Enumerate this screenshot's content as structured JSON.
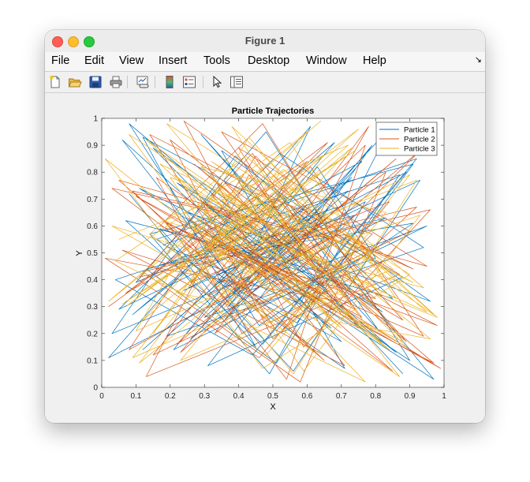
{
  "window": {
    "title": "Figure 1"
  },
  "menu": {
    "items": [
      "File",
      "Edit",
      "View",
      "Insert",
      "Tools",
      "Desktop",
      "Window",
      "Help"
    ],
    "dock_glyph": "↘"
  },
  "toolbar": {
    "icons": [
      "new-figure-icon",
      "open-file-icon",
      "save-icon",
      "print-icon",
      "link-plot-icon",
      "colorbar-icon",
      "legend-icon",
      "pointer-icon",
      "property-inspector-icon"
    ]
  },
  "chart_data": {
    "type": "line",
    "title": "Particle Trajectories",
    "xlabel": "X",
    "ylabel": "Y",
    "xlim": [
      0,
      1
    ],
    "ylim": [
      0,
      1
    ],
    "xticks": [
      "0",
      "0.1",
      "0.2",
      "0.3",
      "0.4",
      "0.5",
      "0.6",
      "0.7",
      "0.8",
      "0.9",
      "1"
    ],
    "yticks": [
      "0",
      "0.1",
      "0.2",
      "0.3",
      "0.4",
      "0.5",
      "0.6",
      "0.7",
      "0.8",
      "0.9",
      "1"
    ],
    "grid": false,
    "legend": "top-right",
    "series": [
      {
        "name": "Particle 1",
        "color": "#0072bd",
        "x": [
          0.08,
          0.45,
          0.12,
          0.88,
          0.31,
          0.66,
          0.05,
          0.52,
          0.94,
          0.19,
          0.73,
          0.38,
          0.61,
          0.02,
          0.83,
          0.27,
          0.57,
          0.91,
          0.14,
          0.49,
          0.77,
          0.33,
          0.68,
          0.09,
          0.42,
          0.86,
          0.22,
          0.59,
          0.96,
          0.35,
          0.71,
          0.16,
          0.53,
          0.81,
          0.29,
          0.64,
          0.07,
          0.47,
          0.89,
          0.24,
          0.62,
          0.97,
          0.11,
          0.55,
          0.79,
          0.36,
          0.69,
          0.04,
          0.44,
          0.92,
          0.18,
          0.58,
          0.84,
          0.26,
          0.74,
          0.13,
          0.51,
          0.87,
          0.32,
          0.67,
          0.06,
          0.41,
          0.95,
          0.21,
          0.63,
          0.8,
          0.3,
          0.72,
          0.1,
          0.48,
          0.9,
          0.25,
          0.6,
          0.03,
          0.39,
          0.85,
          0.17,
          0.56,
          0.93,
          0.34,
          0.7,
          0.15,
          0.54,
          0.82,
          0.28,
          0.65,
          0.08,
          0.46,
          0.91,
          0.2,
          0.76,
          0.37,
          0.6,
          0.12,
          0.5,
          0.88
        ],
        "y": [
          0.72,
          0.15,
          0.93,
          0.41,
          0.08,
          0.66,
          0.29,
          0.87,
          0.52,
          0.19,
          0.78,
          0.34,
          0.97,
          0.11,
          0.63,
          0.45,
          0.24,
          0.83,
          0.57,
          0.05,
          0.69,
          0.38,
          0.91,
          0.27,
          0.61,
          0.13,
          0.76,
          0.49,
          0.32,
          0.88,
          0.07,
          0.55,
          0.71,
          0.21,
          0.94,
          0.43,
          0.62,
          0.16,
          0.8,
          0.36,
          0.58,
          0.03,
          0.74,
          0.47,
          0.9,
          0.25,
          0.67,
          0.4,
          0.12,
          0.85,
          0.53,
          0.31,
          0.96,
          0.18,
          0.64,
          0.44,
          0.09,
          0.79,
          0.56,
          0.22,
          0.92,
          0.35,
          0.6,
          0.14,
          0.82,
          0.48,
          0.26,
          0.73,
          0.39,
          0.95,
          0.1,
          0.65,
          0.5,
          0.2,
          0.86,
          0.33,
          0.59,
          0.06,
          0.77,
          0.42,
          0.17,
          0.89,
          0.54,
          0.28,
          0.7,
          0.37,
          0.98,
          0.23,
          0.61,
          0.46,
          0.84,
          0.3,
          0.68,
          0.14,
          0.57,
          0.05
        ]
      },
      {
        "name": "Particle 2",
        "color": "#d95319",
        "x": [
          0.02,
          0.6,
          0.15,
          0.9,
          0.35,
          0.75,
          0.1,
          0.55,
          0.85,
          0.25,
          0.7,
          0.4,
          0.95,
          0.05,
          0.65,
          0.3,
          0.8,
          0.2,
          0.5,
          0.92,
          0.12,
          0.58,
          0.83,
          0.38,
          0.72,
          0.08,
          0.45,
          0.88,
          0.28,
          0.62,
          0.97,
          0.18,
          0.52,
          0.78,
          0.33,
          0.68,
          0.03,
          0.48,
          0.93,
          0.23,
          0.57,
          0.87,
          0.13,
          0.43,
          0.76,
          0.37,
          0.66,
          0.07,
          0.53,
          0.89,
          0.27,
          0.63,
          0.98,
          0.17,
          0.47,
          0.81,
          0.32,
          0.71,
          0.06,
          0.42,
          0.86,
          0.22,
          0.56,
          0.91,
          0.14,
          0.51,
          0.79,
          0.36,
          0.69,
          0.01,
          0.46,
          0.84,
          0.26,
          0.61,
          0.94,
          0.19,
          0.54,
          0.77,
          0.31,
          0.67,
          0.09,
          0.49,
          0.82,
          0.24,
          0.59,
          0.96,
          0.11,
          0.44,
          0.74,
          0.34,
          0.99,
          0.29,
          0.64,
          0.16,
          0.41,
          0.73
        ],
        "y": [
          0.3,
          0.84,
          0.12,
          0.58,
          0.95,
          0.22,
          0.71,
          0.4,
          0.06,
          0.63,
          0.27,
          0.89,
          0.45,
          0.77,
          0.1,
          0.52,
          0.33,
          0.92,
          0.18,
          0.67,
          0.43,
          0.02,
          0.8,
          0.36,
          0.59,
          0.14,
          0.86,
          0.25,
          0.7,
          0.47,
          0.09,
          0.62,
          0.38,
          0.97,
          0.2,
          0.55,
          0.74,
          0.31,
          0.88,
          0.13,
          0.65,
          0.42,
          0.04,
          0.79,
          0.26,
          0.53,
          0.91,
          0.35,
          0.68,
          0.17,
          0.83,
          0.46,
          0.23,
          0.6,
          0.98,
          0.28,
          0.72,
          0.08,
          0.51,
          0.37,
          0.85,
          0.16,
          0.64,
          0.44,
          0.94,
          0.21,
          0.57,
          0.76,
          0.32,
          0.48,
          0.11,
          0.69,
          0.39,
          0.82,
          0.19,
          0.61,
          0.03,
          0.9,
          0.34,
          0.56,
          0.73,
          0.24,
          0.47,
          0.99,
          0.15,
          0.66,
          0.41,
          0.87,
          0.29,
          0.54,
          0.07,
          0.62,
          0.35,
          0.78,
          0.2,
          0.5
        ]
      },
      {
        "name": "Particle 3",
        "color": "#edb120",
        "x": [
          0.05,
          0.72,
          0.22,
          0.96,
          0.4,
          0.63,
          0.13,
          0.84,
          0.31,
          0.57,
          0.01,
          0.47,
          0.9,
          0.19,
          0.68,
          0.35,
          0.79,
          0.09,
          0.53,
          0.94,
          0.26,
          0.6,
          0.15,
          0.44,
          0.87,
          0.3,
          0.74,
          0.06,
          0.5,
          0.82,
          0.21,
          0.65,
          0.98,
          0.38,
          0.58,
          0.11,
          0.46,
          0.91,
          0.17,
          0.7,
          0.33,
          0.77,
          0.04,
          0.55,
          0.86,
          0.24,
          0.62,
          0.14,
          0.42,
          0.95,
          0.28,
          0.67,
          0.08,
          0.51,
          0.81,
          0.2,
          0.59,
          0.93,
          0.36,
          0.73,
          0.12,
          0.45,
          0.89,
          0.27,
          0.64,
          0.02,
          0.49,
          0.85,
          0.23,
          0.61,
          0.97,
          0.32,
          0.69,
          0.1,
          0.43,
          0.8,
          0.18,
          0.56,
          0.92,
          0.34,
          0.75,
          0.07,
          0.52,
          0.88,
          0.25,
          0.66,
          0.16,
          0.48,
          0.83,
          0.29,
          0.71,
          0.03,
          0.54,
          0.9,
          0.39,
          0.6
        ],
        "y": [
          0.55,
          0.9,
          0.35,
          0.18,
          0.76,
          0.48,
          0.92,
          0.14,
          0.63,
          0.29,
          0.85,
          0.07,
          0.42,
          0.98,
          0.24,
          0.7,
          0.5,
          0.11,
          0.81,
          0.37,
          0.6,
          0.95,
          0.2,
          0.73,
          0.04,
          0.53,
          0.88,
          0.31,
          0.66,
          0.16,
          0.79,
          0.43,
          0.26,
          0.97,
          0.58,
          0.09,
          0.69,
          0.39,
          0.83,
          0.22,
          0.61,
          0.02,
          0.47,
          0.91,
          0.33,
          0.75,
          0.13,
          0.57,
          0.86,
          0.28,
          0.67,
          0.45,
          0.94,
          0.19,
          0.52,
          0.78,
          0.06,
          0.64,
          0.4,
          0.89,
          0.25,
          0.71,
          0.15,
          0.59,
          0.99,
          0.32,
          0.8,
          0.44,
          0.1,
          0.68,
          0.27,
          0.84,
          0.54,
          0.21,
          0.93,
          0.38,
          0.62,
          0.05,
          0.77,
          0.49,
          0.96,
          0.3,
          0.72,
          0.17,
          0.56,
          0.87,
          0.41,
          0.12,
          0.65,
          0.82,
          0.34,
          0.6,
          0.23,
          0.79,
          0.46,
          0.3
        ]
      }
    ]
  }
}
